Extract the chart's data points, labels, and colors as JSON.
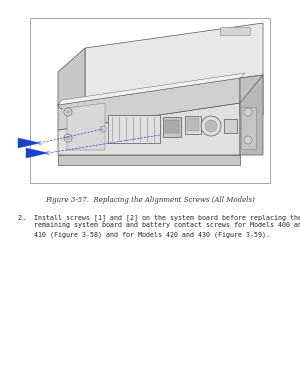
{
  "background_color": "#ffffff",
  "figure_caption": "Figure 3-57.  Replacing the Alignment Screws (All Models)",
  "caption_fontsize": 5.0,
  "body_text_line1": "2.  Install screws [1] and [2] on the system board before replacing the",
  "body_text_line2": "    remaining system board and battery contact screws for Models 400 and",
  "body_text_line3": "    410 (Figure 3-58) and for Models 420 and 430 (Figure 3-59).",
  "body_fontsize": 4.8,
  "arrow_color": "#1a40cc",
  "line_color": "#333333",
  "device_fill": "#f0f0f0",
  "device_edge": "#555555",
  "port_fill": "#e0e0e0",
  "port_edge": "#555555"
}
